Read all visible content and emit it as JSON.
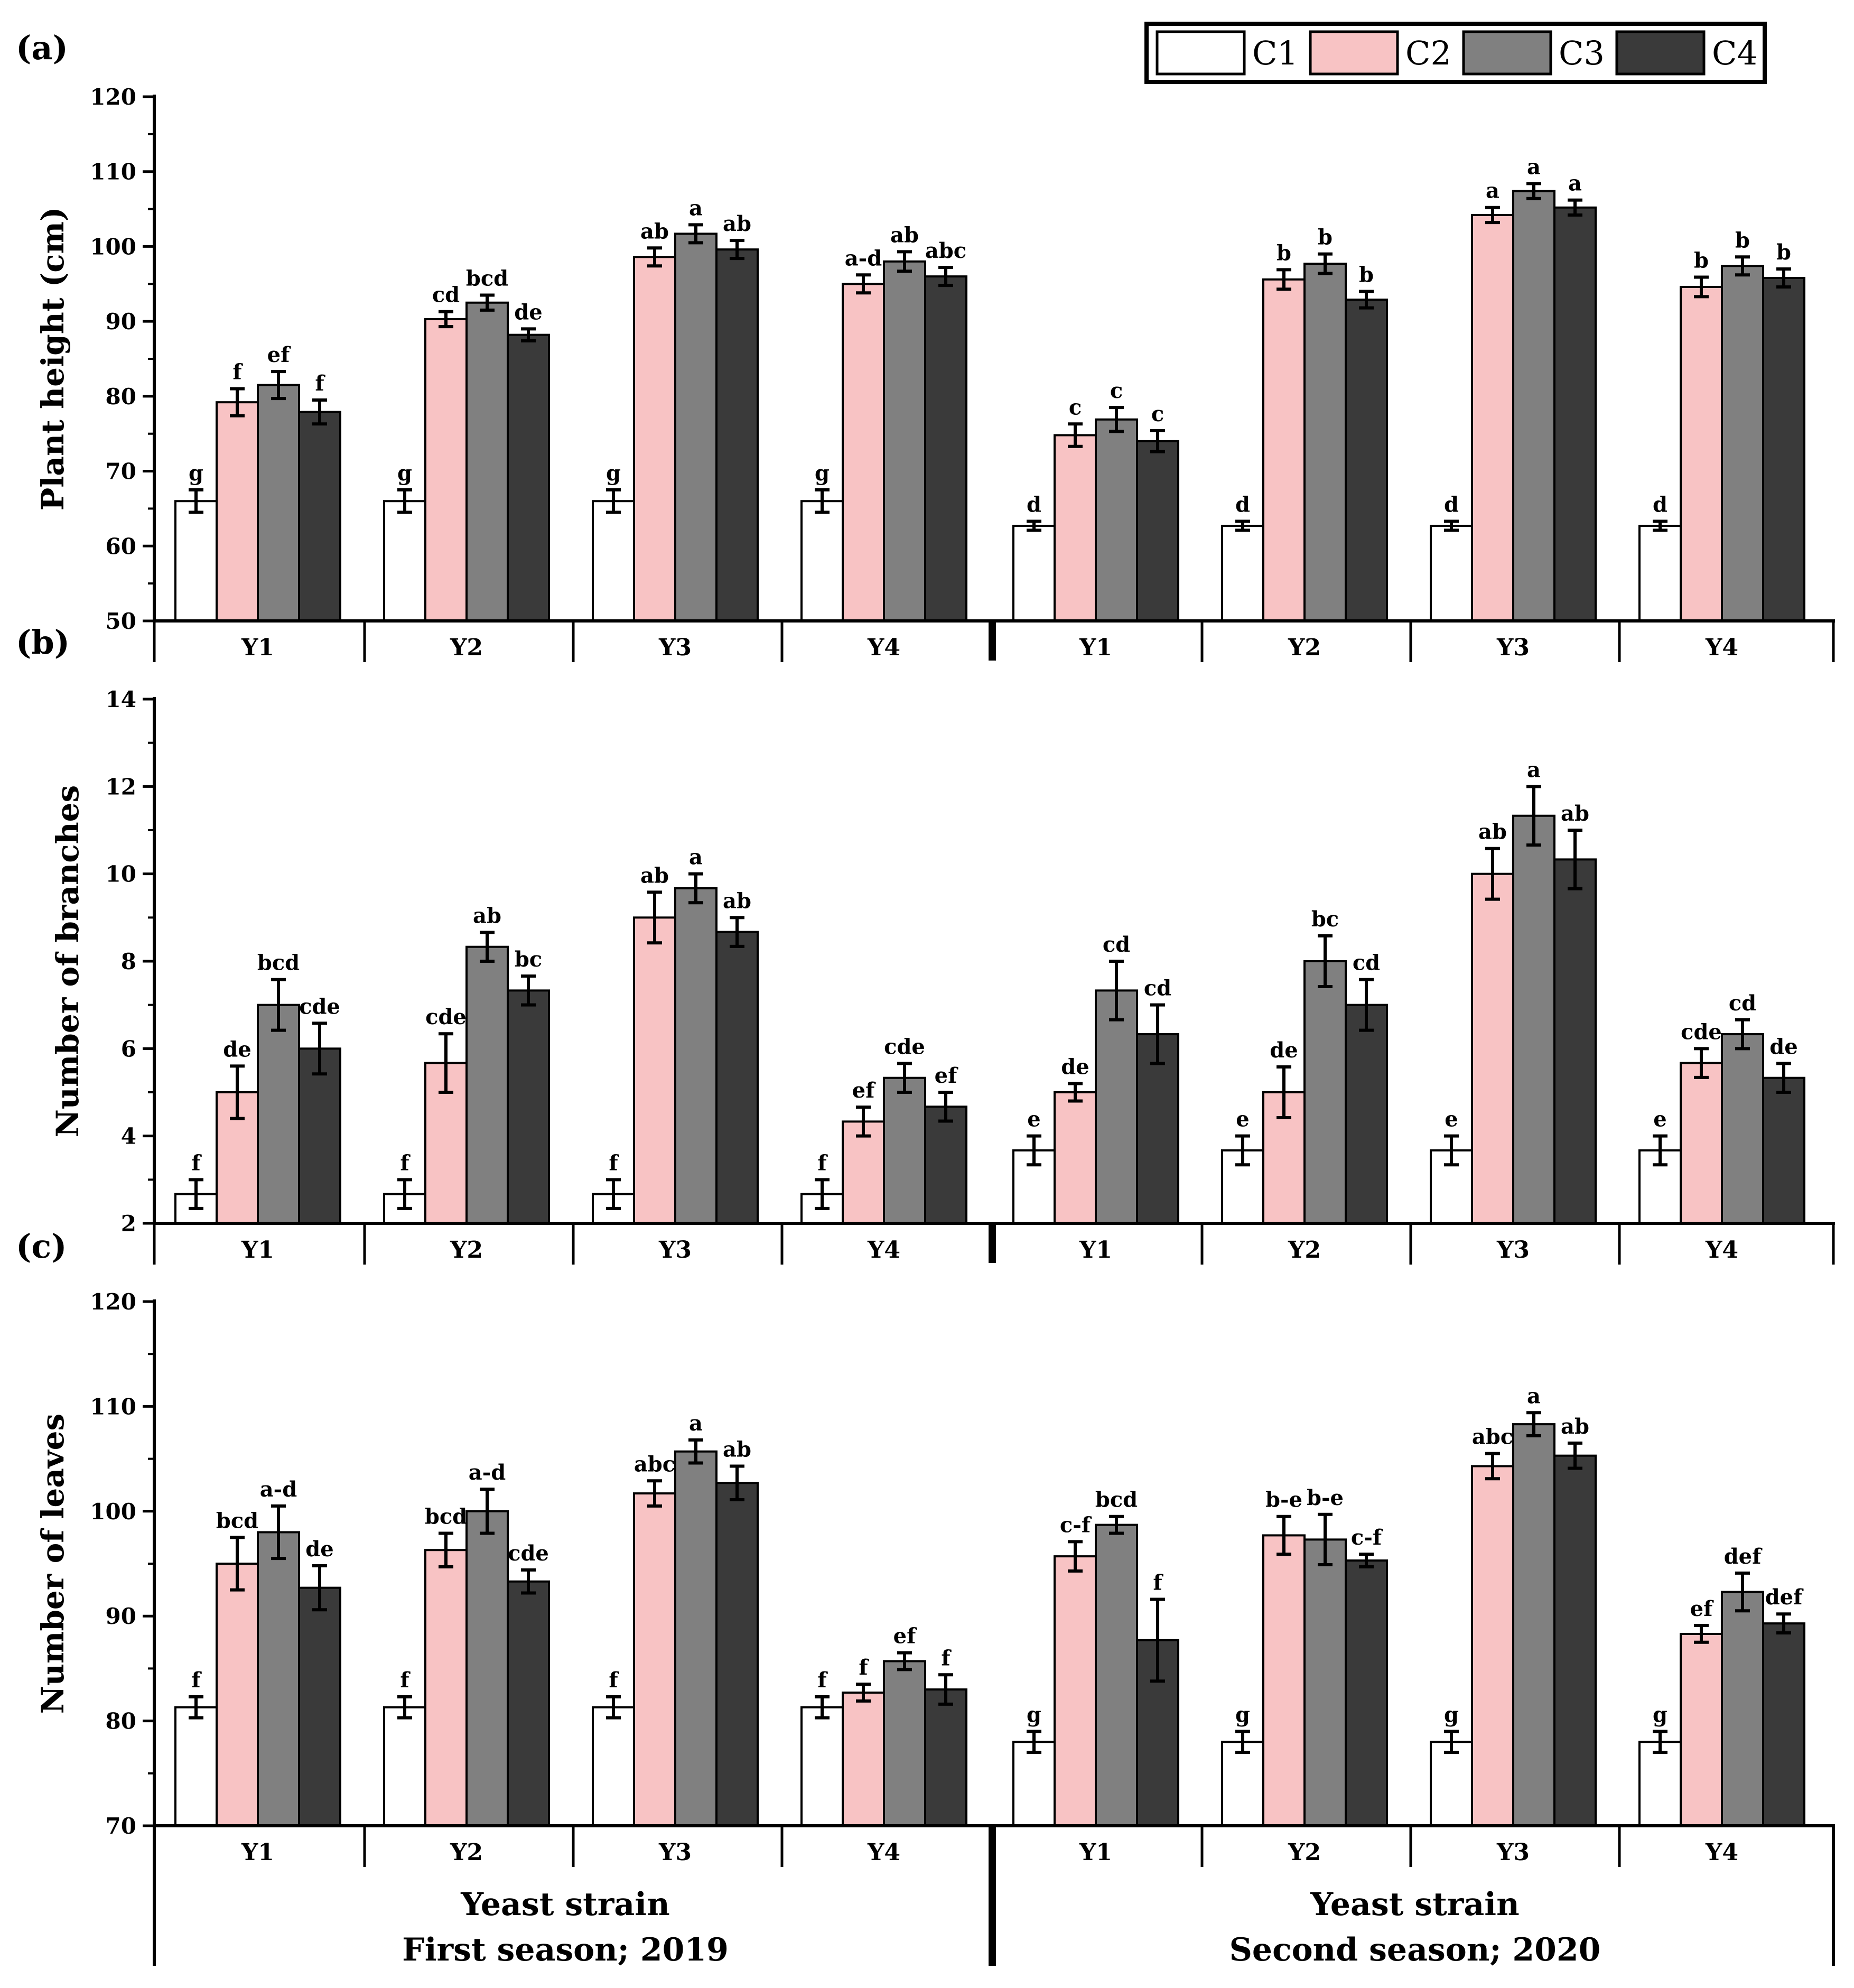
{
  "legend": [
    "C1",
    "C2",
    "C3",
    "C4"
  ],
  "colors": {
    "C1": "#ffffff",
    "C2": "#f8c3c4",
    "C3": "#808080",
    "C4": "#3a3a3a"
  },
  "bottom": {
    "xlabel_left": "Yeast strain",
    "xlabel_right": "Yeast strain",
    "season_left": "First season; 2019",
    "season_right": "Second season; 2020"
  },
  "chart_data": [
    {
      "type": "bar",
      "panel": "(a)",
      "ylabel": "Plant height (cm)",
      "ylim": [
        50,
        120
      ],
      "yticks": [
        50,
        60,
        70,
        80,
        90,
        100,
        110,
        120
      ],
      "categories": [
        "Y1",
        "Y2",
        "Y3",
        "Y4",
        "Y1",
        "Y2",
        "Y3",
        "Y4"
      ],
      "series": [
        {
          "name": "C1",
          "values": [
            66,
            66,
            66,
            66,
            62.7,
            62.7,
            62.7,
            62.7
          ],
          "errors": [
            1.5,
            1.5,
            1.5,
            1.5,
            0.6,
            0.6,
            0.6,
            0.6
          ],
          "letters": [
            "g",
            "g",
            "g",
            "g",
            "d",
            "d",
            "d",
            "d"
          ]
        },
        {
          "name": "C2",
          "values": [
            79.2,
            90.3,
            98.6,
            95,
            74.8,
            95.6,
            104.2,
            94.6
          ],
          "errors": [
            1.8,
            1,
            1.2,
            1.2,
            1.5,
            1.3,
            1,
            1.3
          ],
          "letters": [
            "f",
            "cd",
            "ab",
            "a-d",
            "c",
            "b",
            "a",
            "b"
          ]
        },
        {
          "name": "C3",
          "values": [
            81.5,
            92.5,
            101.7,
            98,
            76.9,
            97.7,
            107.4,
            97.4
          ],
          "errors": [
            1.8,
            1,
            1.2,
            1.3,
            1.6,
            1.3,
            1,
            1.2
          ],
          "letters": [
            "ef",
            "bcd",
            "a",
            "ab",
            "c",
            "b",
            "a",
            "b"
          ]
        },
        {
          "name": "C4",
          "values": [
            77.9,
            88.2,
            99.6,
            96,
            74,
            92.9,
            105.2,
            95.8
          ],
          "errors": [
            1.6,
            0.8,
            1.2,
            1.2,
            1.4,
            1.1,
            1,
            1.2
          ],
          "letters": [
            "f",
            "de",
            "ab",
            "abc",
            "c",
            "b",
            "a",
            "b"
          ]
        }
      ]
    },
    {
      "type": "bar",
      "panel": "(b)",
      "ylabel": "Number of branches",
      "ylim": [
        2,
        14
      ],
      "yticks": [
        2,
        4,
        6,
        8,
        10,
        12,
        14
      ],
      "categories": [
        "Y1",
        "Y2",
        "Y3",
        "Y4",
        "Y1",
        "Y2",
        "Y3",
        "Y4"
      ],
      "series": [
        {
          "name": "C1",
          "values": [
            2.67,
            2.67,
            2.67,
            2.67,
            3.67,
            3.67,
            3.67,
            3.67
          ],
          "errors": [
            0.33,
            0.33,
            0.33,
            0.33,
            0.33,
            0.33,
            0.33,
            0.33
          ],
          "letters": [
            "f",
            "f",
            "f",
            "f",
            "e",
            "e",
            "e",
            "e"
          ]
        },
        {
          "name": "C2",
          "values": [
            5,
            5.67,
            9,
            4.33,
            5,
            5,
            10,
            5.67
          ],
          "errors": [
            0.6,
            0.67,
            0.58,
            0.33,
            0.2,
            0.58,
            0.58,
            0.33
          ],
          "letters": [
            "de",
            "cde",
            "ab",
            "ef",
            "de",
            "de",
            "ab",
            "cde"
          ]
        },
        {
          "name": "C3",
          "values": [
            7,
            8.33,
            9.67,
            5.33,
            7.33,
            8,
            11.33,
            6.33
          ],
          "errors": [
            0.58,
            0.33,
            0.33,
            0.33,
            0.67,
            0.58,
            0.67,
            0.33
          ],
          "letters": [
            "bcd",
            "ab",
            "a",
            "cde",
            "cd",
            "bc",
            "a",
            "cd"
          ]
        },
        {
          "name": "C4",
          "values": [
            6,
            7.33,
            8.67,
            4.67,
            6.33,
            7,
            10.33,
            5.33
          ],
          "errors": [
            0.58,
            0.33,
            0.33,
            0.33,
            0.67,
            0.58,
            0.67,
            0.33
          ],
          "letters": [
            "cde",
            "bc",
            "ab",
            "ef",
            "cd",
            "cd",
            "ab",
            "de"
          ]
        }
      ]
    },
    {
      "type": "bar",
      "panel": "(c)",
      "ylabel": "Number of leaves",
      "ylim": [
        70,
        120
      ],
      "yticks": [
        70,
        80,
        90,
        100,
        110,
        120
      ],
      "categories": [
        "Y1",
        "Y2",
        "Y3",
        "Y4",
        "Y1",
        "Y2",
        "Y3",
        "Y4"
      ],
      "series": [
        {
          "name": "C1",
          "values": [
            81.3,
            81.3,
            81.3,
            81.3,
            78,
            78,
            78,
            78
          ],
          "errors": [
            1,
            1,
            1,
            1,
            1,
            1,
            1,
            1
          ],
          "letters": [
            "f",
            "f",
            "f",
            "f",
            "g",
            "g",
            "g",
            "g"
          ]
        },
        {
          "name": "C2",
          "values": [
            95,
            96.3,
            101.7,
            82.7,
            95.7,
            97.7,
            104.3,
            88.3
          ],
          "errors": [
            2.5,
            1.6,
            1.2,
            0.8,
            1.4,
            1.8,
            1.2,
            0.8
          ],
          "letters": [
            "bcd",
            "bcd",
            "abc",
            "f",
            "c-f",
            "b-e",
            "abc",
            "ef"
          ]
        },
        {
          "name": "C3",
          "values": [
            98,
            100,
            105.7,
            85.7,
            98.7,
            97.3,
            108.3,
            92.3
          ],
          "errors": [
            2.5,
            2.1,
            1.1,
            0.8,
            0.8,
            2.4,
            1.1,
            1.8
          ],
          "letters": [
            "a-d",
            "a-d",
            "a",
            "ef",
            "bcd",
            "b-e",
            "a",
            "def"
          ]
        },
        {
          "name": "C4",
          "values": [
            92.7,
            93.3,
            102.7,
            83,
            87.7,
            95.3,
            105.3,
            89.3
          ],
          "errors": [
            2.1,
            1.1,
            1.6,
            1.4,
            3.9,
            0.6,
            1.2,
            0.9
          ],
          "letters": [
            "de",
            "cde",
            "ab",
            "f",
            "f",
            "c-f",
            "ab",
            "def"
          ]
        }
      ]
    }
  ]
}
